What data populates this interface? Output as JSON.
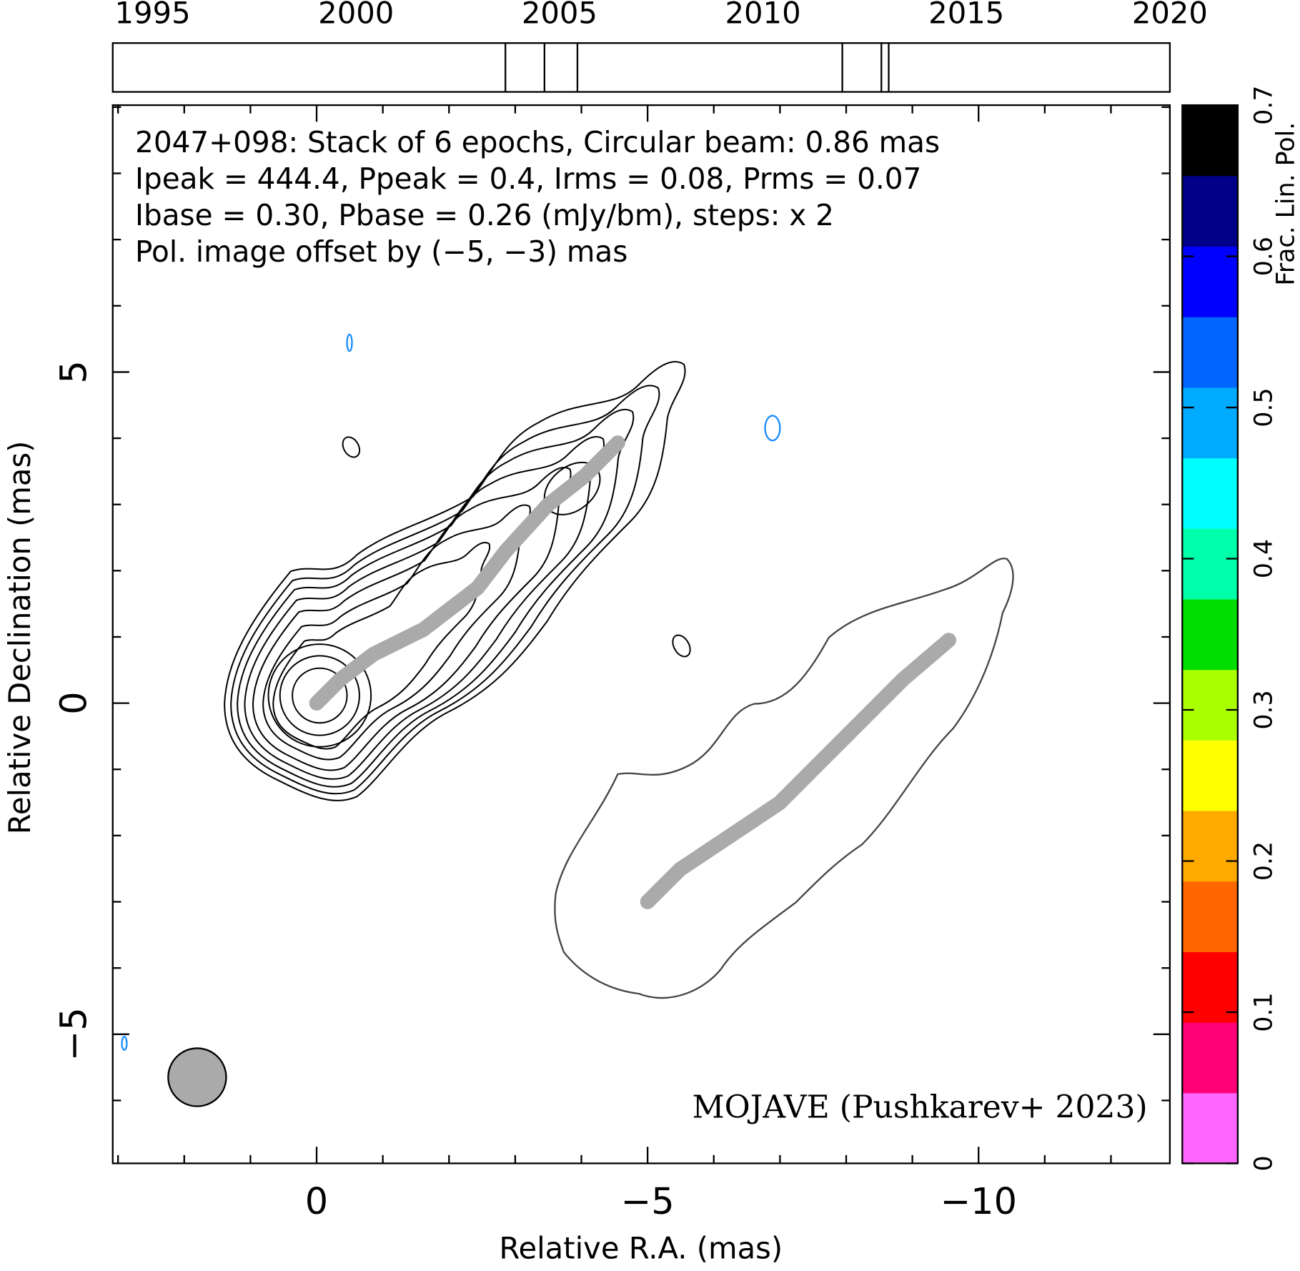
{
  "chart_data": {
    "type": "contour",
    "annotations": [
      {
        "text": "2047+098: Stack of 6 epochs, Circular beam: 0.86 mas",
        "color": "#000000"
      },
      {
        "text": "Ipeak = 444.4, Ppeak = 0.4, Irms = 0.08, Prms = 0.07",
        "color": "#000000"
      },
      {
        "text": "Ibase = 0.30, Pbase = 0.26 (mJy/bm), steps: x 2",
        "color": "#000000"
      },
      {
        "text": "Pol. image offset by (−5, −3) mas",
        "color": "#1a8cff"
      }
    ],
    "credit": {
      "text": "MOJAVE (Pushkarev+ 2023)",
      "color": "#0000ee"
    },
    "x_label": "Relative R.A. (mas)",
    "y_label": "Relative Declination (mas)",
    "xlim": [
      3.08,
      -12.89
    ],
    "ylim": [
      -6.95,
      9.03
    ],
    "xticks": [
      0,
      {
        "value": -5,
        "label": "−5"
      },
      {
        "value": -10,
        "label": "−10"
      }
    ],
    "yticks": [
      {
        "value": -5,
        "label": "−5"
      },
      0,
      5
    ],
    "xminorticks": [
      3,
      2,
      1,
      -1,
      -2,
      -3,
      -4,
      -6,
      -7,
      -8,
      -9,
      -11,
      -12
    ],
    "yminorticks": [
      -6,
      -4,
      -3,
      -2,
      -1,
      1,
      2,
      3,
      4,
      6,
      7,
      8,
      9
    ],
    "series": [
      {
        "color": "#aaaaaa",
        "x": [
          0,
          -0.36,
          -0.86,
          -1.61,
          -2.43,
          -2.86,
          -3.49,
          -4.05,
          -4.55
        ],
        "y": [
          0,
          0.36,
          0.74,
          1.11,
          1.74,
          2.3,
          2.99,
          3.43,
          3.93
        ]
      },
      {
        "color": "#aaaaaa",
        "x": [
          -5,
          -5.49,
          -6.24,
          -6.99,
          -7.61,
          -8.24,
          -8.86,
          -9.55
        ],
        "y": [
          -3,
          -2.51,
          -2.01,
          -1.51,
          -0.89,
          -0.26,
          0.36,
          0.95
        ]
      }
    ],
    "timeline": {
      "xlim": [
        1994.02,
        2020
      ],
      "xticks": [
        1995,
        2000,
        2005,
        2010,
        2015,
        2020
      ],
      "epochs": [
        2003.67,
        2004.63,
        2005.44,
        2011.95,
        2012.91,
        2013.09
      ]
    },
    "colorbar": {
      "label": "Frac. Lin. Pol.",
      "lim": [
        0,
        0.7
      ],
      "ticks": [
        0,
        0.1,
        0.2,
        0.3,
        0.4,
        0.5,
        0.6,
        0.7
      ],
      "colors": [
        "#ff66ff",
        "#ff0077",
        "#ff0000",
        "#ff6600",
        "#ffaa00",
        "#ffff00",
        "#aaff00",
        "#00dd00",
        "#00ffaa",
        "#00ffff",
        "#00aaff",
        "#0066ff",
        "#0000ff",
        "#000088",
        "#000000"
      ]
    }
  }
}
